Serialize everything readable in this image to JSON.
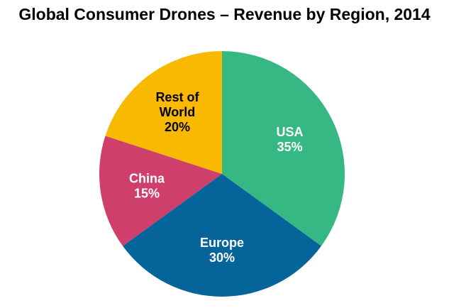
{
  "chart_data": {
    "type": "pie",
    "title": "Global Consumer Drones – Revenue by Region, 2014",
    "slices": [
      {
        "label_lines": [
          "USA"
        ],
        "value": 35,
        "value_label": "35%",
        "color": "#36b884",
        "text_color": "#ffffff"
      },
      {
        "label_lines": [
          "Europe"
        ],
        "value": 30,
        "value_label": "30%",
        "color": "#05659b",
        "text_color": "#ffffff"
      },
      {
        "label_lines": [
          "China"
        ],
        "value": 15,
        "value_label": "15%",
        "color": "#cf3f6c",
        "text_color": "#ffffff"
      },
      {
        "label_lines": [
          "Rest of",
          "World"
        ],
        "value": 20,
        "value_label": "20%",
        "color": "#f8b900",
        "text_color": "#000000"
      }
    ],
    "start_angle": "12 o'clock",
    "direction": "clockwise",
    "legend": "none"
  }
}
